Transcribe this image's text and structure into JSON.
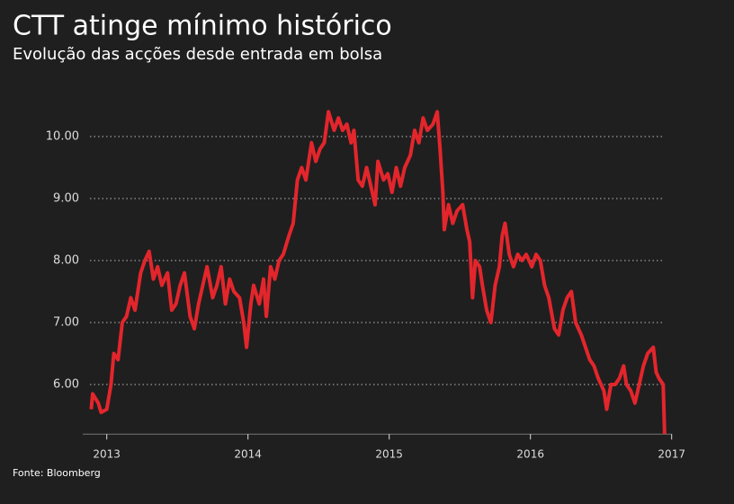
{
  "chart_data": {
    "type": "line",
    "title": "CTT atinge mínimo histórico",
    "subtitle": "Evolução das acções desde entrada em bolsa",
    "source": "Fonte: Bloomberg",
    "x": [
      2012.89,
      2012.9,
      2012.94,
      2012.96,
      2013.0,
      2013.03,
      2013.05,
      2013.08,
      2013.11,
      2013.14,
      2013.17,
      2013.2,
      2013.24,
      2013.27,
      2013.3,
      2013.33,
      2013.36,
      2013.39,
      2013.43,
      2013.46,
      2013.49,
      2013.52,
      2013.55,
      2013.59,
      2013.62,
      2013.65,
      2013.68,
      2013.71,
      2013.75,
      2013.78,
      2013.81,
      2013.84,
      2013.87,
      2013.9,
      2013.94,
      2013.97,
      2013.99,
      2014.02,
      2014.04,
      2014.08,
      2014.11,
      2014.13,
      2014.16,
      2014.19,
      2014.22,
      2014.25,
      2014.29,
      2014.32,
      2014.35,
      2014.38,
      2014.41,
      2014.45,
      2014.48,
      2014.51,
      2014.54,
      2014.57,
      2014.61,
      2014.64,
      2014.67,
      2014.7,
      2014.73,
      2014.75,
      2014.78,
      2014.81,
      2014.84,
      2014.87,
      2014.9,
      2014.92,
      2014.96,
      2014.99,
      2015.02,
      2015.05,
      2015.08,
      2015.11,
      2015.15,
      2015.18,
      2015.21,
      2015.24,
      2015.27,
      2015.31,
      2015.34,
      2015.36,
      2015.38,
      2015.39,
      2015.42,
      2015.45,
      2015.48,
      2015.52,
      2015.55,
      2015.57,
      2015.59,
      2015.61,
      2015.64,
      2015.66,
      2015.69,
      2015.72,
      2015.75,
      2015.78,
      2015.8,
      2015.82,
      2015.85,
      2015.88,
      2015.91,
      2015.94,
      2015.97,
      2016.01,
      2016.04,
      2016.07,
      2016.1,
      2016.13,
      2016.17,
      2016.2,
      2016.23,
      2016.26,
      2016.29,
      2016.32,
      2016.36,
      2016.39,
      2016.42,
      2016.45,
      2016.48,
      2016.52,
      2016.54,
      2016.57,
      2016.6,
      2016.63,
      2016.66,
      2016.68,
      2016.71,
      2016.74,
      2016.77,
      2016.8,
      2016.83,
      2016.87,
      2016.89,
      2016.91,
      2016.94,
      2016.95
    ],
    "series": [
      {
        "name": "CTT",
        "color": "#e3262c",
        "values": [
          5.6,
          5.85,
          5.7,
          5.55,
          5.6,
          6.0,
          6.5,
          6.4,
          7.0,
          7.1,
          7.4,
          7.2,
          7.8,
          8.0,
          8.15,
          7.7,
          7.9,
          7.6,
          7.8,
          7.2,
          7.3,
          7.6,
          7.8,
          7.1,
          6.9,
          7.3,
          7.6,
          7.9,
          7.4,
          7.6,
          7.9,
          7.3,
          7.7,
          7.5,
          7.4,
          7.0,
          6.6,
          7.3,
          7.6,
          7.3,
          7.7,
          7.1,
          7.9,
          7.7,
          8.0,
          8.1,
          8.4,
          8.6,
          9.3,
          9.5,
          9.3,
          9.9,
          9.6,
          9.8,
          9.9,
          10.4,
          10.1,
          10.3,
          10.1,
          10.2,
          9.9,
          10.1,
          9.3,
          9.2,
          9.5,
          9.2,
          8.9,
          9.6,
          9.3,
          9.4,
          9.1,
          9.5,
          9.2,
          9.5,
          9.7,
          10.1,
          9.9,
          10.3,
          10.1,
          10.2,
          10.4,
          9.8,
          9.1,
          8.5,
          8.9,
          8.6,
          8.8,
          8.9,
          8.5,
          8.3,
          7.4,
          8.0,
          7.9,
          7.6,
          7.2,
          7.0,
          7.6,
          7.9,
          8.4,
          8.6,
          8.1,
          7.9,
          8.1,
          8.0,
          8.1,
          7.9,
          8.1,
          8.0,
          7.6,
          7.4,
          6.9,
          6.8,
          7.2,
          7.4,
          7.5,
          7.0,
          6.8,
          6.6,
          6.4,
          6.3,
          6.1,
          5.9,
          5.6,
          6.0,
          6.0,
          6.1,
          6.3,
          6.0,
          5.9,
          5.7,
          6.0,
          6.3,
          6.5,
          6.6,
          6.2,
          6.1,
          6.0,
          5.2
        ]
      }
    ],
    "xlim": [
      2012.83,
      2017
    ],
    "xticks": [
      2013,
      2014,
      2015,
      2016,
      2017
    ],
    "ylim": [
      5.2,
      10.7
    ],
    "yticks": [
      {
        "value": 6,
        "label": "6.00"
      },
      {
        "value": 7,
        "label": "7.00"
      },
      {
        "value": 8,
        "label": "8.00"
      },
      {
        "value": 9,
        "label": "9.00"
      },
      {
        "value": 10,
        "label": "10.00"
      }
    ],
    "grid": true
  }
}
